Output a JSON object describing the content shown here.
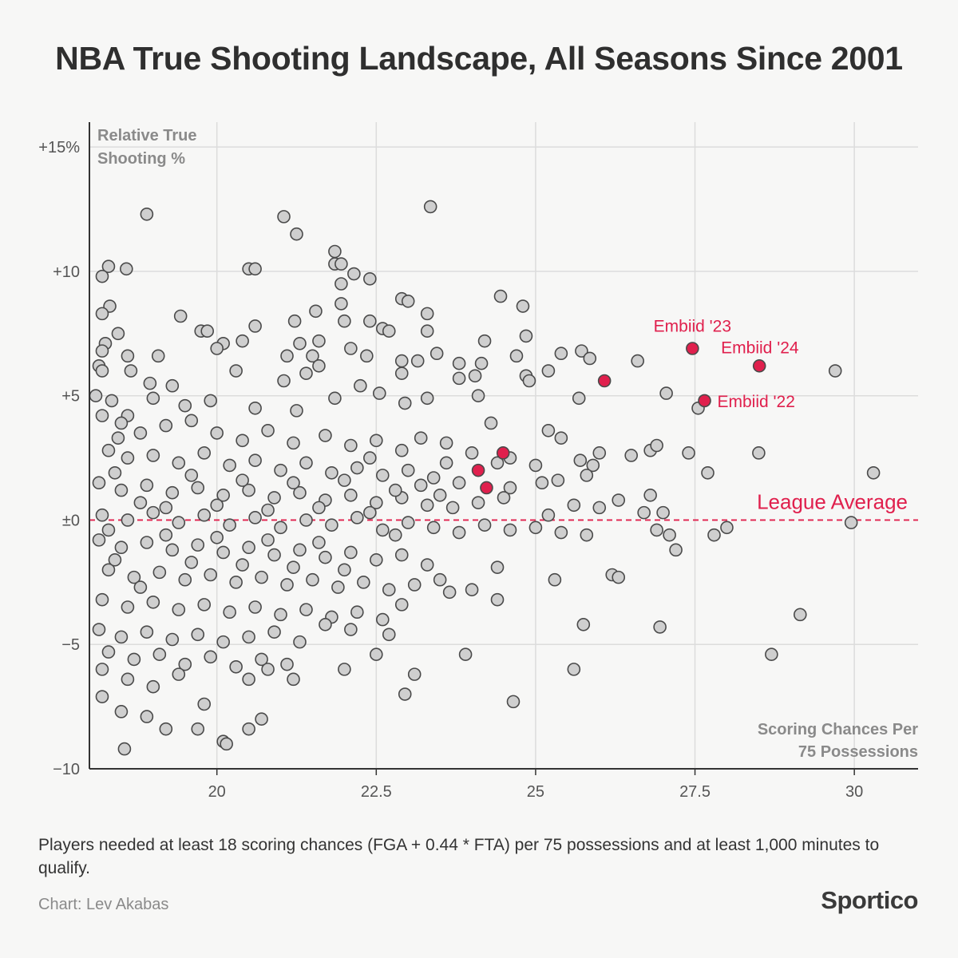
{
  "title": "NBA True Shooting Landscape, All Seasons Since 2001",
  "footnote": "Players needed at least 18 scoring chances (FGA + 0.44 * FTA) per 75 possessions and at least 1,000 minutes to qualify.",
  "credit": "Chart: Lev Akabas",
  "brand": "Sportico",
  "colors": {
    "points": "#cfcfcf",
    "point_stroke": "#4a4a4a",
    "highlight": "#e0204d",
    "grid": "#dcdcdc",
    "axis": "#333333",
    "axis_title": "#8a8a8a"
  },
  "chart_data": {
    "type": "scatter",
    "xlabel": "Scoring Chances Per 75 Possessions",
    "ylabel": "Relative True Shooting %",
    "xlim": [
      18,
      31
    ],
    "ylim": [
      -10,
      16
    ],
    "x_ticks": [
      20,
      22.5,
      25,
      27.5,
      30
    ],
    "x_tick_labels": [
      "20",
      "22.5",
      "25",
      "27.5",
      "30"
    ],
    "y_ticks": [
      -10,
      -5,
      0,
      5,
      10,
      15
    ],
    "y_tick_labels": [
      "−10",
      "−5",
      "±0",
      "+5",
      "+10",
      "+15%"
    ],
    "grid": true,
    "reference_line": {
      "y": 0,
      "label": "League Average"
    },
    "highlights": [
      {
        "x": 27.46,
        "y": 6.9,
        "label": "Embiid '23"
      },
      {
        "x": 28.51,
        "y": 6.2,
        "label": "Embiid '24"
      },
      {
        "x": 27.65,
        "y": 4.8,
        "label": "Embiid '22"
      },
      {
        "x": 26.08,
        "y": 5.6,
        "label": ""
      },
      {
        "x": 24.1,
        "y": 2.0,
        "label": ""
      },
      {
        "x": 24.23,
        "y": 1.3,
        "label": ""
      },
      {
        "x": 24.49,
        "y": 2.7,
        "label": ""
      }
    ],
    "points": [
      [
        18.9,
        12.3
      ],
      [
        21.05,
        12.2
      ],
      [
        23.35,
        12.6
      ],
      [
        21.25,
        11.5
      ],
      [
        18.3,
        10.2
      ],
      [
        18.58,
        10.1
      ],
      [
        20.5,
        10.1
      ],
      [
        20.6,
        10.1
      ],
      [
        21.85,
        10.8
      ],
      [
        21.85,
        10.3
      ],
      [
        21.95,
        10.3
      ],
      [
        22.15,
        9.9
      ],
      [
        22.4,
        9.7
      ],
      [
        18.2,
        9.8
      ],
      [
        21.95,
        9.5
      ],
      [
        22.9,
        8.9
      ],
      [
        23.0,
        8.8
      ],
      [
        21.95,
        8.7
      ],
      [
        18.32,
        8.6
      ],
      [
        18.2,
        8.3
      ],
      [
        21.22,
        8.0
      ],
      [
        22.0,
        8.0
      ],
      [
        22.4,
        8.0
      ],
      [
        21.55,
        8.4
      ],
      [
        23.3,
        8.3
      ],
      [
        24.45,
        9.0
      ],
      [
        24.8,
        8.6
      ],
      [
        18.45,
        7.5
      ],
      [
        18.25,
        7.1
      ],
      [
        19.43,
        8.2
      ],
      [
        19.75,
        7.6
      ],
      [
        19.85,
        7.6
      ],
      [
        20.4,
        7.2
      ],
      [
        20.6,
        7.8
      ],
      [
        21.3,
        7.1
      ],
      [
        21.6,
        7.2
      ],
      [
        22.6,
        7.7
      ],
      [
        22.7,
        7.6
      ],
      [
        23.3,
        7.6
      ],
      [
        23.45,
        6.7
      ],
      [
        24.2,
        7.2
      ],
      [
        24.85,
        7.4
      ],
      [
        18.2,
        6.8
      ],
      [
        18.6,
        6.6
      ],
      [
        19.08,
        6.6
      ],
      [
        20.1,
        7.1
      ],
      [
        20.0,
        6.9
      ],
      [
        21.1,
        6.6
      ],
      [
        21.5,
        6.6
      ],
      [
        22.1,
        6.9
      ],
      [
        22.35,
        6.6
      ],
      [
        22.9,
        6.4
      ],
      [
        23.15,
        6.4
      ],
      [
        23.8,
        6.3
      ],
      [
        24.15,
        6.3
      ],
      [
        24.7,
        6.6
      ],
      [
        25.2,
        6.0
      ],
      [
        25.4,
        6.7
      ],
      [
        25.72,
        6.8
      ],
      [
        25.85,
        6.5
      ],
      [
        26.6,
        6.4
      ],
      [
        29.7,
        6.0
      ],
      [
        18.15,
        6.2
      ],
      [
        18.2,
        6.0
      ],
      [
        18.65,
        6.0
      ],
      [
        18.95,
        5.5
      ],
      [
        19.3,
        5.4
      ],
      [
        20.3,
        6.0
      ],
      [
        21.05,
        5.6
      ],
      [
        21.4,
        5.9
      ],
      [
        21.6,
        6.2
      ],
      [
        22.25,
        5.4
      ],
      [
        22.9,
        5.9
      ],
      [
        23.8,
        5.7
      ],
      [
        24.05,
        5.8
      ],
      [
        24.85,
        5.8
      ],
      [
        24.9,
        5.6
      ],
      [
        25.68,
        4.9
      ],
      [
        27.05,
        5.1
      ],
      [
        27.55,
        4.5
      ],
      [
        18.1,
        5.0
      ],
      [
        18.35,
        4.8
      ],
      [
        18.6,
        4.2
      ],
      [
        19.0,
        4.9
      ],
      [
        19.5,
        4.6
      ],
      [
        19.9,
        4.8
      ],
      [
        20.6,
        4.5
      ],
      [
        21.25,
        4.4
      ],
      [
        21.85,
        4.9
      ],
      [
        22.55,
        5.1
      ],
      [
        22.95,
        4.7
      ],
      [
        23.3,
        4.9
      ],
      [
        24.1,
        5.0
      ],
      [
        24.3,
        3.9
      ],
      [
        24.6,
        2.5
      ],
      [
        25.2,
        3.6
      ],
      [
        25.4,
        3.3
      ],
      [
        25.7,
        2.4
      ],
      [
        25.9,
        2.2
      ],
      [
        26.0,
        2.7
      ],
      [
        26.5,
        2.6
      ],
      [
        26.8,
        2.8
      ],
      [
        26.9,
        3.0
      ],
      [
        27.4,
        2.7
      ],
      [
        27.7,
        1.9
      ],
      [
        28.5,
        2.7
      ],
      [
        30.3,
        1.9
      ],
      [
        18.2,
        4.2
      ],
      [
        18.5,
        3.9
      ],
      [
        18.8,
        3.5
      ],
      [
        19.2,
        3.8
      ],
      [
        19.6,
        4.0
      ],
      [
        20.0,
        3.5
      ],
      [
        20.4,
        3.2
      ],
      [
        20.8,
        3.6
      ],
      [
        21.2,
        3.1
      ],
      [
        21.7,
        3.4
      ],
      [
        22.1,
        3.0
      ],
      [
        22.5,
        3.2
      ],
      [
        22.9,
        2.8
      ],
      [
        23.2,
        3.3
      ],
      [
        23.6,
        3.1
      ],
      [
        24.0,
        2.7
      ],
      [
        24.4,
        2.3
      ],
      [
        25.0,
        2.2
      ],
      [
        18.3,
        2.8
      ],
      [
        18.6,
        2.5
      ],
      [
        19.0,
        2.6
      ],
      [
        19.4,
        2.3
      ],
      [
        19.8,
        2.7
      ],
      [
        20.2,
        2.2
      ],
      [
        20.6,
        2.4
      ],
      [
        21.0,
        2.0
      ],
      [
        21.4,
        2.3
      ],
      [
        21.8,
        1.9
      ],
      [
        22.2,
        2.1
      ],
      [
        22.6,
        1.8
      ],
      [
        23.0,
        2.0
      ],
      [
        23.4,
        1.7
      ],
      [
        23.8,
        1.5
      ],
      [
        24.6,
        1.3
      ],
      [
        25.1,
        1.5
      ],
      [
        25.35,
        1.6
      ],
      [
        25.8,
        1.8
      ],
      [
        26.3,
        0.8
      ],
      [
        26.8,
        1.0
      ],
      [
        18.15,
        1.5
      ],
      [
        18.5,
        1.2
      ],
      [
        18.9,
        1.4
      ],
      [
        19.3,
        1.1
      ],
      [
        19.7,
        1.3
      ],
      [
        20.1,
        1.0
      ],
      [
        20.5,
        1.2
      ],
      [
        20.9,
        0.9
      ],
      [
        21.3,
        1.1
      ],
      [
        21.7,
        0.8
      ],
      [
        22.1,
        1.0
      ],
      [
        22.5,
        0.7
      ],
      [
        22.9,
        0.9
      ],
      [
        23.3,
        0.6
      ],
      [
        23.7,
        0.5
      ],
      [
        24.1,
        0.7
      ],
      [
        24.5,
        0.9
      ],
      [
        25.2,
        0.2
      ],
      [
        25.6,
        0.6
      ],
      [
        26.0,
        0.5
      ],
      [
        26.7,
        0.3
      ],
      [
        27.0,
        0.3
      ],
      [
        18.2,
        0.2
      ],
      [
        18.6,
        0.0
      ],
      [
        19.0,
        0.3
      ],
      [
        19.4,
        -0.1
      ],
      [
        19.8,
        0.2
      ],
      [
        20.2,
        -0.2
      ],
      [
        20.6,
        0.1
      ],
      [
        21.0,
        -0.3
      ],
      [
        21.4,
        0.0
      ],
      [
        21.8,
        -0.2
      ],
      [
        22.2,
        0.1
      ],
      [
        22.6,
        -0.4
      ],
      [
        23.0,
        -0.1
      ],
      [
        23.4,
        -0.3
      ],
      [
        23.8,
        -0.5
      ],
      [
        24.2,
        -0.2
      ],
      [
        24.6,
        -0.4
      ],
      [
        25.0,
        -0.3
      ],
      [
        25.4,
        -0.5
      ],
      [
        25.8,
        -0.6
      ],
      [
        26.9,
        -0.4
      ],
      [
        27.1,
        -0.6
      ],
      [
        27.8,
        -0.6
      ],
      [
        28.0,
        -0.3
      ],
      [
        29.95,
        -0.1
      ],
      [
        18.15,
        -0.8
      ],
      [
        18.5,
        -1.1
      ],
      [
        18.9,
        -0.9
      ],
      [
        19.3,
        -1.2
      ],
      [
        19.7,
        -1.0
      ],
      [
        20.1,
        -1.3
      ],
      [
        20.5,
        -1.1
      ],
      [
        20.9,
        -1.4
      ],
      [
        21.3,
        -1.2
      ],
      [
        21.7,
        -1.5
      ],
      [
        22.1,
        -1.3
      ],
      [
        22.5,
        -1.6
      ],
      [
        22.9,
        -1.4
      ],
      [
        23.3,
        -1.8
      ],
      [
        24.4,
        -1.9
      ],
      [
        27.2,
        -1.2
      ],
      [
        18.3,
        -2.0
      ],
      [
        18.7,
        -2.3
      ],
      [
        19.1,
        -2.1
      ],
      [
        19.5,
        -2.4
      ],
      [
        19.9,
        -2.2
      ],
      [
        20.3,
        -2.5
      ],
      [
        20.7,
        -2.3
      ],
      [
        21.1,
        -2.6
      ],
      [
        21.5,
        -2.4
      ],
      [
        21.9,
        -2.7
      ],
      [
        22.3,
        -2.5
      ],
      [
        22.7,
        -2.8
      ],
      [
        23.1,
        -2.6
      ],
      [
        23.5,
        -2.4
      ],
      [
        24.0,
        -2.8
      ],
      [
        25.3,
        -2.4
      ],
      [
        26.2,
        -2.2
      ],
      [
        26.3,
        -2.3
      ],
      [
        18.2,
        -3.2
      ],
      [
        18.6,
        -3.5
      ],
      [
        19.0,
        -3.3
      ],
      [
        19.4,
        -3.6
      ],
      [
        19.8,
        -3.4
      ],
      [
        20.2,
        -3.7
      ],
      [
        20.6,
        -3.5
      ],
      [
        21.0,
        -3.8
      ],
      [
        21.4,
        -3.6
      ],
      [
        21.8,
        -3.9
      ],
      [
        22.2,
        -3.7
      ],
      [
        22.6,
        -4.0
      ],
      [
        22.9,
        -3.4
      ],
      [
        23.65,
        -2.9
      ],
      [
        24.4,
        -3.2
      ],
      [
        18.15,
        -4.4
      ],
      [
        18.5,
        -4.7
      ],
      [
        18.9,
        -4.5
      ],
      [
        19.3,
        -4.8
      ],
      [
        19.7,
        -4.6
      ],
      [
        20.1,
        -4.9
      ],
      [
        20.5,
        -4.7
      ],
      [
        20.9,
        -4.5
      ],
      [
        21.3,
        -4.9
      ],
      [
        21.7,
        -4.2
      ],
      [
        22.1,
        -4.4
      ],
      [
        22.7,
        -4.6
      ],
      [
        25.75,
        -4.2
      ],
      [
        26.95,
        -4.3
      ],
      [
        29.15,
        -3.8
      ],
      [
        18.3,
        -5.3
      ],
      [
        18.7,
        -5.6
      ],
      [
        19.1,
        -5.4
      ],
      [
        19.5,
        -5.8
      ],
      [
        19.9,
        -5.5
      ],
      [
        20.3,
        -5.9
      ],
      [
        20.7,
        -5.6
      ],
      [
        21.1,
        -5.8
      ],
      [
        22.0,
        -6.0
      ],
      [
        22.5,
        -5.4
      ],
      [
        23.9,
        -5.4
      ],
      [
        28.7,
        -5.4
      ],
      [
        18.2,
        -6.0
      ],
      [
        18.6,
        -6.4
      ],
      [
        19.0,
        -6.7
      ],
      [
        19.4,
        -6.2
      ],
      [
        20.5,
        -6.4
      ],
      [
        20.8,
        -6.0
      ],
      [
        22.95,
        -7.0
      ],
      [
        23.1,
        -6.2
      ],
      [
        25.6,
        -6.0
      ],
      [
        18.2,
        -7.1
      ],
      [
        18.5,
        -7.7
      ],
      [
        18.9,
        -7.9
      ],
      [
        19.2,
        -8.4
      ],
      [
        19.7,
        -8.4
      ],
      [
        20.1,
        -8.9
      ],
      [
        20.5,
        -8.4
      ],
      [
        20.7,
        -8.0
      ],
      [
        24.65,
        -7.3
      ],
      [
        18.55,
        -9.2
      ],
      [
        20.15,
        -9.0
      ],
      [
        21.2,
        -6.4
      ],
      [
        19.8,
        -7.4
      ],
      [
        18.3,
        -0.4
      ],
      [
        18.4,
        1.9
      ],
      [
        18.4,
        -1.6
      ],
      [
        18.45,
        3.3
      ],
      [
        18.8,
        0.7
      ],
      [
        18.8,
        -2.7
      ],
      [
        19.2,
        0.5
      ],
      [
        19.2,
        -0.6
      ],
      [
        19.6,
        1.8
      ],
      [
        19.6,
        -1.7
      ],
      [
        20.0,
        0.6
      ],
      [
        20.0,
        -0.7
      ],
      [
        20.4,
        1.6
      ],
      [
        20.4,
        -1.8
      ],
      [
        20.8,
        0.4
      ],
      [
        20.8,
        -0.8
      ],
      [
        21.2,
        1.5
      ],
      [
        21.2,
        -1.9
      ],
      [
        21.6,
        0.5
      ],
      [
        21.6,
        -0.9
      ],
      [
        22.0,
        1.6
      ],
      [
        22.0,
        -2.0
      ],
      [
        22.4,
        0.3
      ],
      [
        22.4,
        2.5
      ],
      [
        22.8,
        1.2
      ],
      [
        22.8,
        -0.6
      ],
      [
        23.2,
        1.4
      ],
      [
        23.5,
        1.0
      ],
      [
        23.6,
        2.3
      ]
    ]
  }
}
